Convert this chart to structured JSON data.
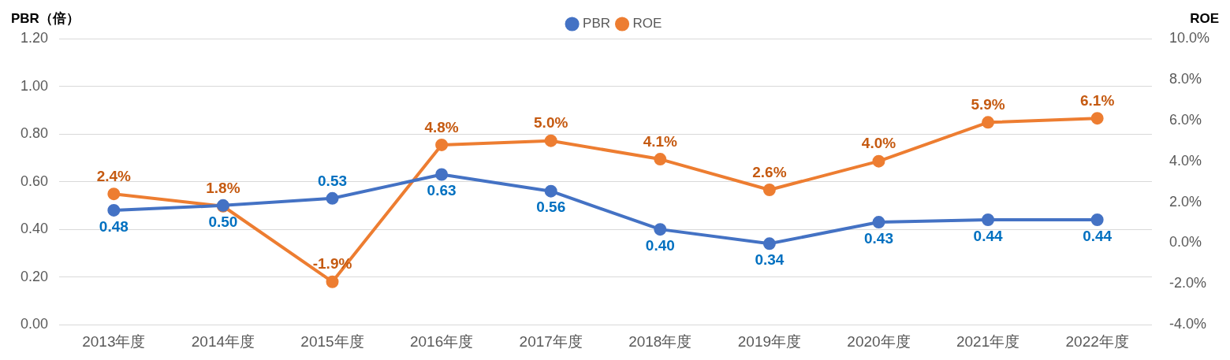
{
  "chart_data": {
    "type": "line",
    "ylabel": "PBR（倍）",
    "y2label": "ROE",
    "categories": [
      "2013年度",
      "2014年度",
      "2015年度",
      "2016年度",
      "2017年度",
      "2018年度",
      "2019年度",
      "2020年度",
      "2021年度",
      "2022年度"
    ],
    "series": [
      {
        "name": "PBR",
        "color": "#4472c4",
        "values": [
          0.48,
          0.5,
          0.53,
          0.63,
          0.56,
          0.4,
          0.34,
          0.43,
          0.44,
          0.44
        ],
        "value_labels": [
          "0.48",
          "0.50",
          "0.53",
          "0.63",
          "0.56",
          "0.40",
          "0.34",
          "0.43",
          "0.44",
          "0.44"
        ]
      },
      {
        "name": "ROE",
        "color": "#ed7d31",
        "axis": "y2",
        "values": [
          2.4,
          1.8,
          -1.9,
          4.8,
          5.0,
          4.1,
          2.6,
          4.0,
          5.9,
          6.1
        ],
        "value_labels": [
          "2.4%",
          "1.8%",
          "-1.9%",
          "4.8%",
          "5.0%",
          "4.1%",
          "2.6%",
          "4.0%",
          "5.9%",
          "6.1%"
        ]
      }
    ],
    "ylim": [
      0,
      1.2
    ],
    "yticks": [
      {
        "value": 0,
        "label": "0.00"
      },
      {
        "value": 0.2,
        "label": "0.20"
      },
      {
        "value": 0.4,
        "label": "0.40"
      },
      {
        "value": 0.6,
        "label": "0.60"
      },
      {
        "value": 0.8,
        "label": "0.80"
      },
      {
        "value": 1.0,
        "label": "1.00"
      },
      {
        "value": 1.2,
        "label": "1.20"
      }
    ],
    "y2lim": [
      -4,
      10
    ],
    "y2ticks": [
      {
        "value": -4,
        "label": "-4.0%"
      },
      {
        "value": -2,
        "label": "-2.0%"
      },
      {
        "value": 0,
        "label": "0.0%"
      },
      {
        "value": 2,
        "label": "2.0%"
      },
      {
        "value": 4,
        "label": "4.0%"
      },
      {
        "value": 6,
        "label": "6.0%"
      },
      {
        "value": 8,
        "label": "8.0%"
      },
      {
        "value": 10,
        "label": "10.0%"
      }
    ],
    "grid": "y",
    "legend": "top",
    "marker": "circle",
    "line_style": "solid"
  }
}
